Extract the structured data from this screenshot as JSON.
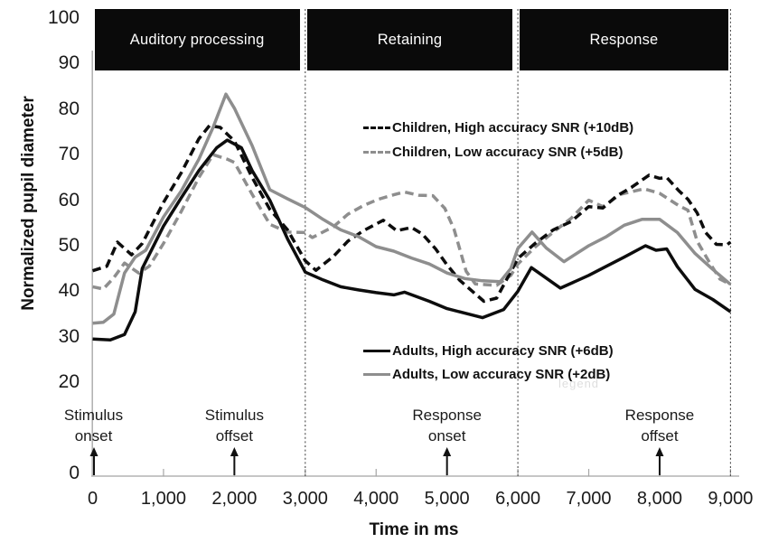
{
  "colors": {
    "black_series": "#0d0d0d",
    "gray_series": "#8e8e8e",
    "bar_bg": "#0a0a0a",
    "bar_text": "#fdfdfd",
    "axis_line": "#b3b3b3",
    "tick_mark": "#a6a6a6",
    "phase_divider": "#4a4a4a"
  },
  "phases": [
    {
      "label": "Auditory processing",
      "t0": 0,
      "t1": 3000
    },
    {
      "label": "Retaining",
      "t0": 3000,
      "t1": 6000
    },
    {
      "label": "Response",
      "t0": 6000,
      "t1": 9000
    }
  ],
  "y_axis": {
    "title": "Normalized pupil diameter",
    "ticks": [
      {
        "v": 100,
        "label": "100"
      },
      {
        "v": 90,
        "label": "90"
      },
      {
        "v": 80,
        "label": "80"
      },
      {
        "v": 70,
        "label": "70"
      },
      {
        "v": 60,
        "label": "60"
      },
      {
        "v": 50,
        "label": "50"
      },
      {
        "v": 40,
        "label": "40"
      },
      {
        "v": 30,
        "label": "30"
      },
      {
        "v": 20,
        "label": "20"
      },
      {
        "v": 0,
        "label": "0"
      }
    ]
  },
  "x_axis": {
    "title": "Time in ms",
    "ticks": [
      {
        "v": 0,
        "label": "0"
      },
      {
        "v": 1000,
        "label": "1,000"
      },
      {
        "v": 2000,
        "label": "2,000"
      },
      {
        "v": 3000,
        "label": "3,000"
      },
      {
        "v": 4000,
        "label": "4,000"
      },
      {
        "v": 5000,
        "label": "5,000"
      },
      {
        "v": 6000,
        "label": "6,000"
      },
      {
        "v": 7000,
        "label": "7,000"
      },
      {
        "v": 8000,
        "label": "8,000"
      },
      {
        "v": 9000,
        "label": "9,000"
      }
    ]
  },
  "legend_children": [
    {
      "label": "Children, High accuracy SNR (+10dB)",
      "series": "children_high"
    },
    {
      "label": "Children, Low accuracy SNR (+5dB)",
      "series": "children_low"
    }
  ],
  "legend_adults": [
    {
      "label": "Adults, High accuracy SNR (+6dB)",
      "series": "adults_high"
    },
    {
      "label": "Adults, Low accuracy SNR (+2dB)",
      "series": "adults_low"
    }
  ],
  "annotations": [
    {
      "line1": "Stimulus",
      "line2": "onset",
      "t": 0
    },
    {
      "line1": "Stimulus",
      "line2": "offset",
      "t": 2000
    },
    {
      "line1": "Response",
      "line2": "onset",
      "t": 5000
    },
    {
      "line1": "Response",
      "line2": "offset",
      "t": 8000
    }
  ],
  "ghost_text": "legend",
  "chart_data": {
    "type": "line",
    "title": "",
    "xlabel": "Time in ms",
    "ylabel": "Normalized pupil diameter",
    "xlim": [
      0,
      9000
    ],
    "ylim": [
      0,
      100
    ],
    "grid": false,
    "phase_dividers_ms": [
      3000,
      6000,
      9000
    ],
    "series": [
      {
        "id": "children_low",
        "name": "Children, Low accuracy SNR (+5dB)",
        "color": "#8e8e8e",
        "style": "dashed",
        "points": [
          [
            0,
            41
          ],
          [
            150,
            40.5
          ],
          [
            300,
            43
          ],
          [
            450,
            46.2
          ],
          [
            650,
            44
          ],
          [
            800,
            45.5
          ],
          [
            1000,
            50.5
          ],
          [
            1250,
            57.5
          ],
          [
            1500,
            65
          ],
          [
            1700,
            70
          ],
          [
            1900,
            69
          ],
          [
            2000,
            68.3
          ],
          [
            2250,
            61.3
          ],
          [
            2500,
            54.7
          ],
          [
            2750,
            53
          ],
          [
            3000,
            52.9
          ],
          [
            3100,
            51.8
          ],
          [
            3400,
            54.2
          ],
          [
            3600,
            56.9
          ],
          [
            3820,
            58.8
          ],
          [
            4030,
            60.2
          ],
          [
            4250,
            61.2
          ],
          [
            4400,
            61.8
          ],
          [
            4600,
            61.1
          ],
          [
            4800,
            61
          ],
          [
            4970,
            58.2
          ],
          [
            5100,
            53.6
          ],
          [
            5270,
            44.4
          ],
          [
            5400,
            41.6
          ],
          [
            5700,
            41.3
          ],
          [
            5900,
            43.5
          ],
          [
            6000,
            46
          ],
          [
            6250,
            49.8
          ],
          [
            6500,
            53
          ],
          [
            6750,
            56
          ],
          [
            7000,
            60
          ],
          [
            7200,
            58.6
          ],
          [
            7450,
            61.3
          ],
          [
            7780,
            62.5
          ],
          [
            8000,
            61.5
          ],
          [
            8270,
            58.8
          ],
          [
            8400,
            57.8
          ],
          [
            8530,
            51
          ],
          [
            8700,
            46.4
          ],
          [
            8850,
            42.7
          ],
          [
            9000,
            41.5
          ]
        ]
      },
      {
        "id": "children_high",
        "name": "Children, High accuracy SNR (+10dB)",
        "color": "#0d0d0d",
        "style": "dashed",
        "points": [
          [
            0,
            44.5
          ],
          [
            200,
            45.5
          ],
          [
            350,
            50.8
          ],
          [
            550,
            48
          ],
          [
            700,
            50.5
          ],
          [
            1000,
            59.5
          ],
          [
            1250,
            66
          ],
          [
            1500,
            73.5
          ],
          [
            1650,
            76.4
          ],
          [
            1800,
            76
          ],
          [
            2000,
            73
          ],
          [
            2250,
            65
          ],
          [
            2500,
            58
          ],
          [
            2750,
            53.5
          ],
          [
            3000,
            46.7
          ],
          [
            3150,
            44.6
          ],
          [
            3400,
            47.7
          ],
          [
            3600,
            51
          ],
          [
            3820,
            53.3
          ],
          [
            4100,
            55.6
          ],
          [
            4290,
            53.3
          ],
          [
            4500,
            54
          ],
          [
            4650,
            52.6
          ],
          [
            4840,
            49.3
          ],
          [
            5000,
            45.8
          ],
          [
            5180,
            42.4
          ],
          [
            5520,
            37.8
          ],
          [
            5700,
            38.5
          ],
          [
            6000,
            47.2
          ],
          [
            6250,
            50.6
          ],
          [
            6500,
            53.5
          ],
          [
            6750,
            55.3
          ],
          [
            7000,
            58.6
          ],
          [
            7200,
            58.3
          ],
          [
            7400,
            61
          ],
          [
            7600,
            62.8
          ],
          [
            7850,
            65.5
          ],
          [
            8000,
            64.8
          ],
          [
            8100,
            65
          ],
          [
            8270,
            62.1
          ],
          [
            8400,
            60.2
          ],
          [
            8530,
            57.2
          ],
          [
            8650,
            52.9
          ],
          [
            8800,
            50.3
          ],
          [
            8950,
            50.2
          ],
          [
            9000,
            50.8
          ]
        ]
      },
      {
        "id": "adults_low",
        "name": "Adults, Low accuracy SNR (+2dB)",
        "color": "#8e8e8e",
        "style": "solid",
        "points": [
          [
            0,
            33
          ],
          [
            150,
            33.2
          ],
          [
            300,
            35
          ],
          [
            450,
            44
          ],
          [
            600,
            47.5
          ],
          [
            750,
            49
          ],
          [
            1000,
            56.3
          ],
          [
            1250,
            62
          ],
          [
            1500,
            69
          ],
          [
            1700,
            76
          ],
          [
            1880,
            83.3
          ],
          [
            2000,
            80.2
          ],
          [
            2250,
            72
          ],
          [
            2500,
            62.3
          ],
          [
            2750,
            60.3
          ],
          [
            3000,
            58.4
          ],
          [
            3250,
            55.8
          ],
          [
            3500,
            53.5
          ],
          [
            3750,
            52
          ],
          [
            4000,
            49.8
          ],
          [
            4250,
            48.8
          ],
          [
            4500,
            47.3
          ],
          [
            4750,
            46
          ],
          [
            5000,
            44
          ],
          [
            5250,
            42.8
          ],
          [
            5500,
            42.3
          ],
          [
            5750,
            42.1
          ],
          [
            5900,
            45
          ],
          [
            6000,
            49.4
          ],
          [
            6200,
            53
          ],
          [
            6400,
            49.5
          ],
          [
            6650,
            46.5
          ],
          [
            7000,
            50
          ],
          [
            7250,
            52
          ],
          [
            7500,
            54.5
          ],
          [
            7750,
            55.8
          ],
          [
            8000,
            55.8
          ],
          [
            8250,
            52.9
          ],
          [
            8500,
            48.3
          ],
          [
            8750,
            44.8
          ],
          [
            9000,
            41.5
          ]
        ]
      },
      {
        "id": "adults_high",
        "name": "Adults, High accuracy SNR (+6dB)",
        "color": "#0d0d0d",
        "style": "solid",
        "points": [
          [
            0,
            29.5
          ],
          [
            250,
            29.3
          ],
          [
            450,
            30.5
          ],
          [
            600,
            35.5
          ],
          [
            700,
            45
          ],
          [
            1000,
            54.3
          ],
          [
            1250,
            60.5
          ],
          [
            1500,
            66.5
          ],
          [
            1750,
            71.5
          ],
          [
            1900,
            73.2
          ],
          [
            2100,
            71.5
          ],
          [
            2250,
            66.5
          ],
          [
            2500,
            60
          ],
          [
            2750,
            51.5
          ],
          [
            3000,
            44.2
          ],
          [
            3250,
            42.5
          ],
          [
            3500,
            41
          ],
          [
            3750,
            40.3
          ],
          [
            4000,
            39.7
          ],
          [
            4250,
            39.2
          ],
          [
            4400,
            39.8
          ],
          [
            4750,
            37.8
          ],
          [
            5000,
            36.2
          ],
          [
            5250,
            35.2
          ],
          [
            5500,
            34.2
          ],
          [
            5800,
            36
          ],
          [
            6000,
            40
          ],
          [
            6190,
            45.2
          ],
          [
            6600,
            40.7
          ],
          [
            7000,
            43.5
          ],
          [
            7250,
            45.5
          ],
          [
            7500,
            47.5
          ],
          [
            7800,
            50
          ],
          [
            7950,
            49
          ],
          [
            8100,
            49.3
          ],
          [
            8250,
            45.4
          ],
          [
            8500,
            40.4
          ],
          [
            8750,
            38.2
          ],
          [
            9000,
            35.5
          ]
        ]
      }
    ]
  }
}
